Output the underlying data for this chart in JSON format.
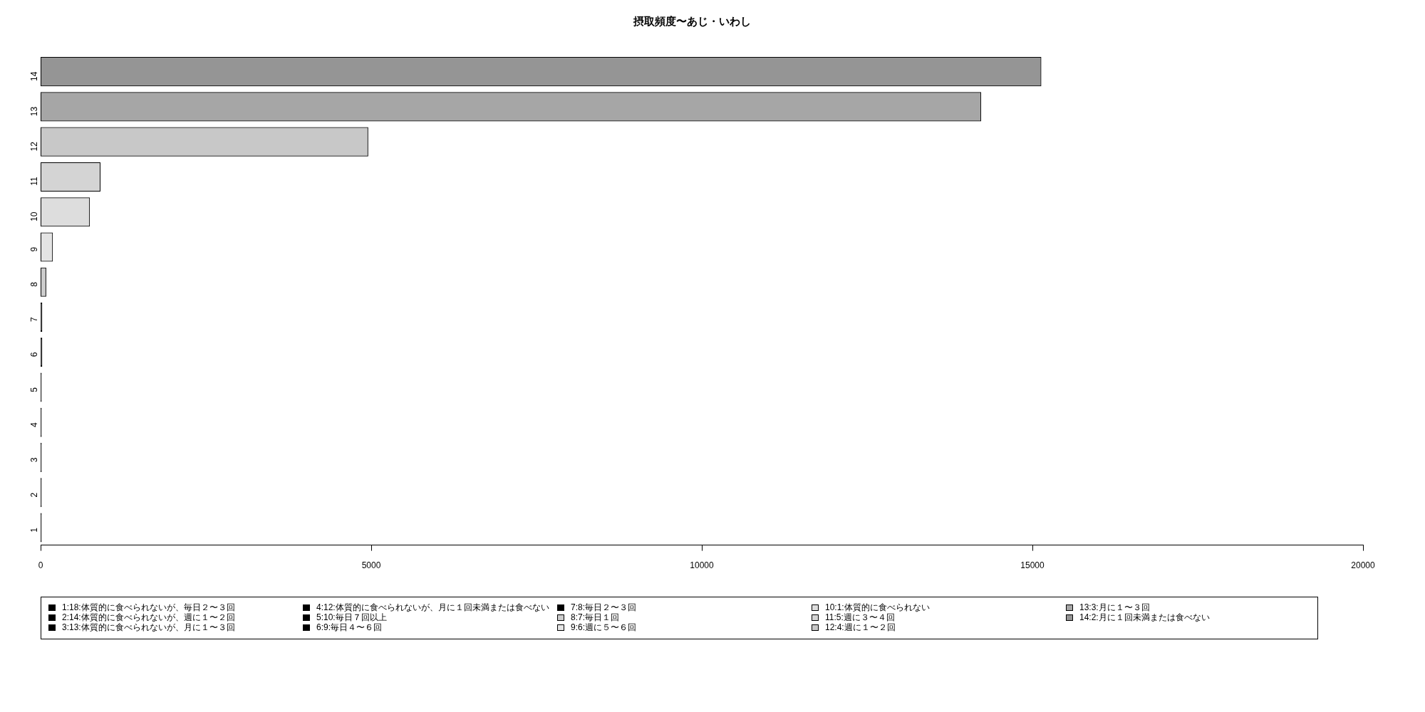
{
  "chart_data": {
    "type": "bar",
    "orientation": "horizontal",
    "title": "摂取頻度〜あじ・いわし",
    "categories": [
      "14",
      "13",
      "12",
      "11",
      "10",
      "9",
      "8",
      "7",
      "6",
      "5",
      "4",
      "3",
      "2",
      "1"
    ],
    "xlim": [
      0,
      20000
    ],
    "xticks": [
      0,
      5000,
      10000,
      15000,
      20000
    ],
    "legend": "bottom",
    "series": [
      {
        "name": "1:18:体質的に食べられないが、毎日２〜３回",
        "color": "#000000",
        "values": [
          null,
          null,
          null,
          null,
          null,
          null,
          null,
          null,
          null,
          null,
          null,
          null,
          null,
          10
        ]
      },
      {
        "name": "2:14:体質的に食べられないが、週に１〜２回",
        "color": "#000000",
        "values": [
          null,
          null,
          null,
          null,
          null,
          null,
          null,
          null,
          null,
          null,
          null,
          null,
          10,
          null
        ]
      },
      {
        "name": "3:13:体質的に食べられないが、月に１〜３回",
        "color": "#000000",
        "values": [
          null,
          null,
          null,
          null,
          null,
          null,
          null,
          null,
          null,
          null,
          null,
          10,
          null,
          null
        ]
      },
      {
        "name": "4:12:体質的に食べられないが、月に１回未満または食べない",
        "color": "#000000",
        "values": [
          null,
          null,
          null,
          null,
          null,
          null,
          null,
          null,
          null,
          null,
          10,
          null,
          null,
          null
        ]
      },
      {
        "name": "5:10:毎日７回以上",
        "color": "#000000",
        "values": [
          null,
          null,
          null,
          null,
          null,
          null,
          null,
          null,
          null,
          10,
          null,
          null,
          null,
          null
        ]
      },
      {
        "name": "6:9:毎日４〜６回",
        "color": "#000000",
        "values": [
          null,
          null,
          null,
          null,
          null,
          null,
          null,
          null,
          20,
          null,
          null,
          null,
          null,
          null
        ]
      },
      {
        "name": "7:8:毎日２〜３回",
        "color": "#000000",
        "values": [
          null,
          null,
          null,
          null,
          null,
          null,
          null,
          20,
          null,
          null,
          null,
          null,
          null,
          null
        ]
      },
      {
        "name": "8:7:毎日１回",
        "color": "#cccccc",
        "values": [
          null,
          null,
          null,
          null,
          null,
          null,
          80,
          null,
          null,
          null,
          null,
          null,
          null,
          null
        ]
      },
      {
        "name": "9:6:週に５〜６回",
        "color": "#e4e4e4",
        "values": [
          null,
          null,
          null,
          null,
          null,
          180,
          null,
          null,
          null,
          null,
          null,
          null,
          null,
          null
        ]
      },
      {
        "name": "10:1:体質的に食べられない",
        "color": "#dddddd",
        "values": [
          null,
          null,
          null,
          null,
          740,
          null,
          null,
          null,
          null,
          null,
          null,
          null,
          null,
          null
        ]
      },
      {
        "name": "11:5:週に３〜４回",
        "color": "#d4d4d4",
        "values": [
          null,
          null,
          null,
          900,
          null,
          null,
          null,
          null,
          null,
          null,
          null,
          null,
          null,
          null
        ]
      },
      {
        "name": "12:4:週に１〜２回",
        "color": "#c8c8c8",
        "values": [
          null,
          null,
          4950,
          null,
          null,
          null,
          null,
          null,
          null,
          null,
          null,
          null,
          null,
          null
        ]
      },
      {
        "name": "13:3:月に１〜３回",
        "color": "#a6a6a6",
        "values": [
          null,
          14220,
          null,
          null,
          null,
          null,
          null,
          null,
          null,
          null,
          null,
          null,
          null,
          null
        ]
      },
      {
        "name": "14:2:月に１回未満または食べない",
        "color": "#959595",
        "values": [
          15130,
          null,
          null,
          null,
          null,
          null,
          null,
          null,
          null,
          null,
          null,
          null,
          null,
          null
        ]
      }
    ]
  }
}
